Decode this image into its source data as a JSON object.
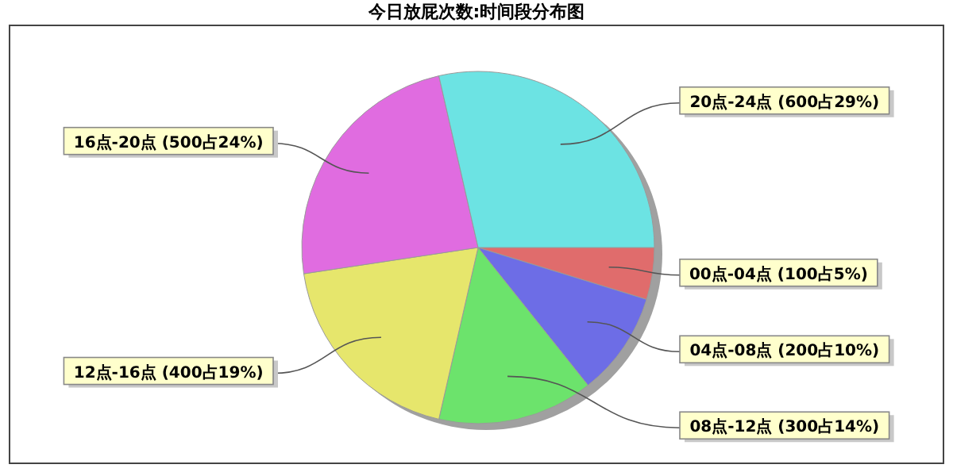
{
  "chart_data": {
    "type": "pie",
    "title": "今日放屁次数:时间段分布图",
    "categories": [
      "00点-04点 (100占5%)",
      "04点-08点 (200占10%)",
      "08点-12点 (300占14%)",
      "12点-16点 (400占19%)",
      "16点-20点 (500占24%)",
      "20点-24点 (600占29%)"
    ],
    "values": [
      100,
      200,
      300,
      400,
      500,
      600
    ],
    "colors": [
      "#e06c6c",
      "#6d6de6",
      "#6ce36c",
      "#e6e66c",
      "#e06ce0",
      "#6ce3e3"
    ]
  }
}
